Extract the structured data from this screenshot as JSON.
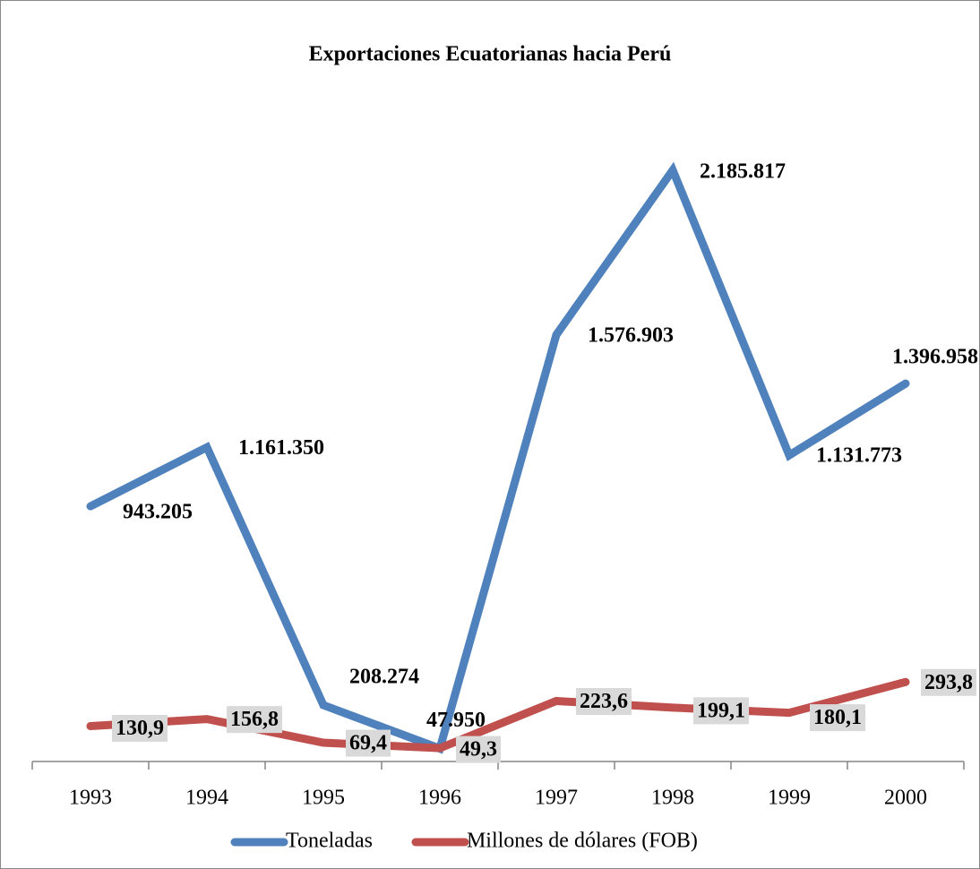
{
  "chart_data": {
    "type": "line",
    "title": "Exportaciones Ecuatorianas hacia Perú",
    "categories": [
      "1993",
      "1994",
      "1995",
      "1996",
      "1997",
      "1998",
      "1999",
      "2000"
    ],
    "series": [
      {
        "name": "Toneladas",
        "color": "#4f81bd",
        "values": [
          943205,
          1161350,
          208274,
          47950,
          1576903,
          2185817,
          1131773,
          1396958
        ],
        "value_labels": [
          "943.205",
          "1.161.350",
          "208.274",
          "47.950",
          "1.576.903",
          "2.185.817",
          "1.131.773",
          "1.396.958"
        ]
      },
      {
        "name": "Millones de dólares (FOB)",
        "color": "#c0504d",
        "axis": "y2",
        "values": [
          130.9,
          156.8,
          69.4,
          49.3,
          223.6,
          199.1,
          180.1,
          293.8
        ],
        "value_labels": [
          "130,9",
          "156,8",
          "69,4",
          "49,3",
          "223,6",
          "199,1",
          "180,1",
          "293,8"
        ]
      }
    ],
    "ylim": [
      0,
      2500000
    ],
    "y2lim": [
      0,
      2500
    ],
    "legend": "bottom"
  }
}
